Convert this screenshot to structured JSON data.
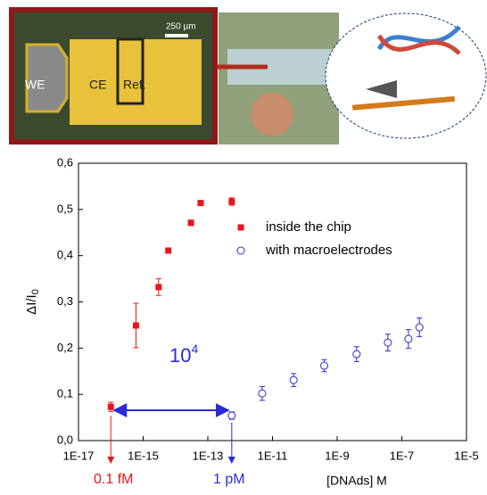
{
  "photo": {
    "we_label": "WE",
    "ce_label": "CE",
    "ref_label": "Ref.",
    "scale_label": "250 µm"
  },
  "chart_data": {
    "type": "scatter",
    "y_label": {
      "text": "ΔI/I",
      "subscript": "0"
    },
    "x_label": "[DNAds] M",
    "log_x": true,
    "xlim": [
      1e-17,
      1e-05
    ],
    "xticks": [
      {
        "value": 1e-17,
        "label": "1E-17"
      },
      {
        "value": 1e-15,
        "label": "1E-15"
      },
      {
        "value": 1e-13,
        "label": "1E-13"
      },
      {
        "value": 1e-11,
        "label": "1E-11"
      },
      {
        "value": 1e-09,
        "label": "1E-9"
      },
      {
        "value": 1e-07,
        "label": "1E-7"
      },
      {
        "value": 1e-05,
        "label": "1E-5"
      }
    ],
    "ylim": [
      0,
      0.6
    ],
    "yticks": [
      {
        "value": 0,
        "label": "0,0"
      },
      {
        "value": 0.1,
        "label": "0,1"
      },
      {
        "value": 0.2,
        "label": "0,2"
      },
      {
        "value": 0.3,
        "label": "0,3"
      },
      {
        "value": 0.4,
        "label": "0,4"
      },
      {
        "value": 0.5,
        "label": "0,5"
      },
      {
        "value": 0.6,
        "label": "0,6"
      }
    ],
    "legend_position": "upper right",
    "series": [
      {
        "name": "inside the chip",
        "color": "#e8161b",
        "marker": "square",
        "x": [
          1e-16,
          6e-16,
          3e-15,
          6e-15,
          3e-14,
          6e-14,
          5.5e-13
        ],
        "values": [
          0.073,
          0.249,
          0.332,
          0.411,
          0.471,
          0.514,
          0.517
        ],
        "errors": [
          0.01,
          0.048,
          0.018,
          0.004,
          0.006,
          0.004,
          0.008
        ]
      },
      {
        "name": "with macroelectrodes",
        "color": "#2a2ad6",
        "marker": "open-circle",
        "x": [
          5.5e-13,
          4.8e-12,
          4.5e-11,
          4e-10,
          4e-09,
          3.7e-08,
          1.6e-07,
          3.5e-07
        ],
        "values": [
          0.054,
          0.102,
          0.131,
          0.162,
          0.187,
          0.212,
          0.22,
          0.245
        ],
        "errors": [
          0.008,
          0.015,
          0.014,
          0.013,
          0.016,
          0.018,
          0.02,
          0.02
        ]
      }
    ],
    "annotations": {
      "left_limit": "0.1 fM",
      "right_limit": "1 pM",
      "range": {
        "base": "10",
        "exponent": "4"
      }
    }
  }
}
